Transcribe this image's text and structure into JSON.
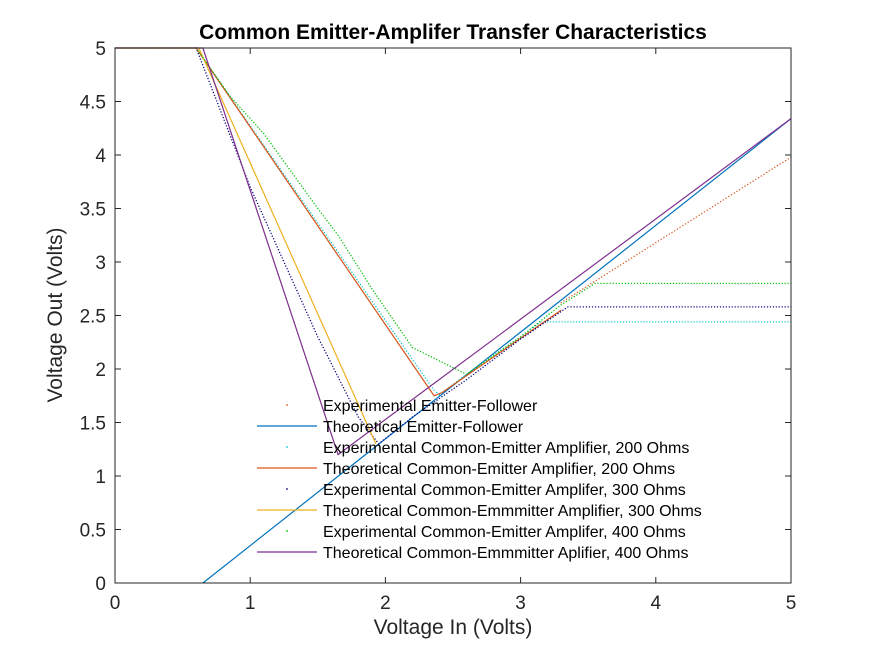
{
  "chart_data": {
    "type": "line",
    "title": "Common Emitter-Amplifer Transfer Characteristics",
    "xlabel": "Voltage In (Volts)",
    "ylabel": "Voltage Out (Volts)",
    "xlim": [
      0,
      5
    ],
    "ylim": [
      0,
      5
    ],
    "xticks": [
      "0",
      "1",
      "2",
      "3",
      "4",
      "5"
    ],
    "yticks": [
      "0",
      "0.5",
      "1",
      "1.5",
      "2",
      "2.5",
      "3",
      "3.5",
      "4",
      "4.5",
      "5"
    ],
    "grid": false,
    "legend_position": "bottom-center",
    "series": [
      {
        "name": "Experimental Emitter-Follower",
        "style": "dots",
        "color": "#d95319",
        "x": [
          3.3,
          3.4,
          3.5,
          3.6,
          3.7,
          3.8,
          3.9,
          4.0,
          4.1,
          4.2,
          4.3,
          4.4,
          4.5,
          4.6,
          4.7,
          4.8,
          4.9,
          5.0
        ],
        "y": [
          2.62,
          2.7,
          2.78,
          2.86,
          2.94,
          3.02,
          3.1,
          3.18,
          3.26,
          3.34,
          3.42,
          3.5,
          3.58,
          3.66,
          3.74,
          3.82,
          3.9,
          3.98
        ]
      },
      {
        "name": "Theoretical Emitter-Follower",
        "style": "line",
        "color": "#0072bd",
        "x": [
          0.65,
          5.0
        ],
        "y": [
          0.0,
          4.34
        ]
      },
      {
        "name": "Experimental Common-Emitter Amplifier, 200 Ohms",
        "style": "dots",
        "color": "#00c8c8",
        "x": [
          0.0,
          0.6,
          2.36,
          2.4,
          2.6,
          2.8,
          3.0,
          3.15,
          3.2,
          3.5,
          4.0,
          4.5,
          5.0
        ],
        "y": [
          5.0,
          5.0,
          1.8,
          1.76,
          1.95,
          2.13,
          2.3,
          2.44,
          2.44,
          2.44,
          2.44,
          2.44,
          2.44
        ]
      },
      {
        "name": "Theoretical Common-Emitter Amplifier, 200 Ohms",
        "style": "line",
        "color": "#d95319",
        "x": [
          0.0,
          0.6,
          2.36,
          2.42,
          3.3
        ],
        "y": [
          5.0,
          5.0,
          1.75,
          1.78,
          2.55
        ]
      },
      {
        "name": "Experimental Common-Emitter Amplifer, 300 Ohms",
        "style": "dots",
        "color": "#000080",
        "x": [
          0.6,
          1.0,
          1.5,
          1.8,
          1.95,
          2.2,
          2.6,
          3.0,
          3.35,
          3.6,
          4.0,
          4.5,
          5.0
        ],
        "y": [
          5.0,
          3.7,
          2.3,
          1.55,
          1.3,
          1.55,
          1.9,
          2.28,
          2.58,
          2.58,
          2.58,
          2.58,
          2.58
        ]
      },
      {
        "name": "Theoretical Common-Emmmitter Amplifier, 300 Ohms",
        "style": "line",
        "color": "#edb120",
        "x": [
          0.0,
          0.62,
          1.93
        ],
        "y": [
          5.0,
          5.0,
          1.3
        ]
      },
      {
        "name": "Experimental Common-Emitter Amplifer, 400 Ohms",
        "style": "dots",
        "color": "#00c000",
        "x": [
          0.6,
          0.85,
          1.1,
          1.3,
          1.5,
          1.65,
          1.9,
          2.2,
          2.6,
          3.0,
          3.3,
          3.55,
          4.0,
          4.5,
          5.0
        ],
        "y": [
          5.0,
          4.55,
          4.2,
          3.85,
          3.5,
          3.25,
          2.75,
          2.2,
          1.95,
          2.3,
          2.6,
          2.8,
          2.8,
          2.8,
          2.8
        ]
      },
      {
        "name": "Theoretical Common-Emmmitter Aplifier, 400 Ohms",
        "style": "line",
        "color": "#7e2f8e",
        "x": [
          0.0,
          0.65,
          1.65,
          5.0
        ],
        "y": [
          5.0,
          5.0,
          1.2,
          4.34
        ]
      }
    ]
  }
}
